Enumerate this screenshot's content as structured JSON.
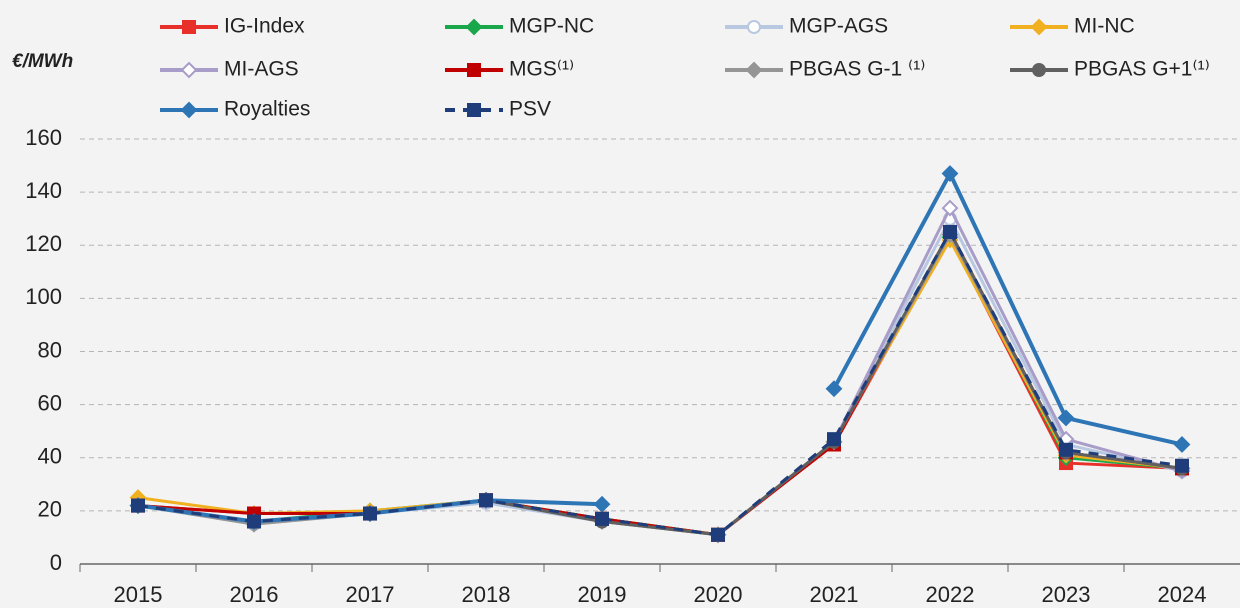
{
  "chart_data": {
    "type": "line",
    "y_axis_label": "€/MWh",
    "categories": [
      "2015",
      "2016",
      "2017",
      "2018",
      "2019",
      "2020",
      "2021",
      "2022",
      "2023",
      "2024"
    ],
    "ylim": [
      0,
      160
    ],
    "yticks": [
      0,
      20,
      40,
      60,
      80,
      100,
      120,
      140,
      160
    ],
    "grid": true,
    "series": [
      {
        "name": "IG-Index",
        "color": "#e8302a",
        "marker": "square",
        "values": [
          22,
          19,
          19,
          24,
          17,
          11,
          45,
          123,
          38,
          36
        ]
      },
      {
        "name": "MGP-NC",
        "color": "#1aa64a",
        "marker": "diamond",
        "values": [
          22,
          16,
          20,
          24,
          17,
          11,
          46,
          123,
          40,
          36
        ]
      },
      {
        "name": "MGP-AGS",
        "color": "#b8c8e0",
        "marker": "open-circle",
        "values": [
          22,
          15,
          19,
          23,
          16,
          11,
          46,
          130,
          45,
          35
        ]
      },
      {
        "name": "MI-NC",
        "color": "#f0b020",
        "marker": "diamond",
        "values": [
          25,
          19,
          20,
          24,
          17,
          11,
          46,
          122,
          41,
          36
        ]
      },
      {
        "name": "MI-AGS",
        "color": "#a89cc8",
        "marker": "open-diamond",
        "values": [
          22,
          16,
          19,
          24,
          16,
          11,
          46,
          134,
          47,
          35
        ]
      },
      {
        "name": "MGS⁽¹⁾",
        "color": "#c00000",
        "marker": "square",
        "values": [
          22,
          19,
          19,
          24,
          17,
          11,
          45,
          125,
          42,
          36
        ]
      },
      {
        "name": "PBGAS G-1 ⁽¹⁾",
        "color": "#959595",
        "marker": "diamond",
        "values": [
          22,
          15,
          19,
          24,
          16,
          11,
          46,
          124,
          42,
          36
        ]
      },
      {
        "name": "PBGAS G+1⁽¹⁾",
        "color": "#606060",
        "marker": "circle",
        "values": [
          22,
          16,
          19,
          24,
          16,
          11,
          46,
          125,
          42,
          36
        ]
      },
      {
        "name": "Royalties",
        "color": "#2e75b6",
        "marker": "diamond",
        "values": [
          22,
          16,
          19,
          24,
          22.5,
          null,
          66,
          147,
          55,
          45
        ]
      },
      {
        "name": "PSV",
        "color": "#1f3d7a",
        "marker": "square",
        "dash": true,
        "values": [
          22,
          16,
          19,
          24,
          17,
          11,
          47,
          125,
          43,
          37
        ]
      }
    ]
  }
}
